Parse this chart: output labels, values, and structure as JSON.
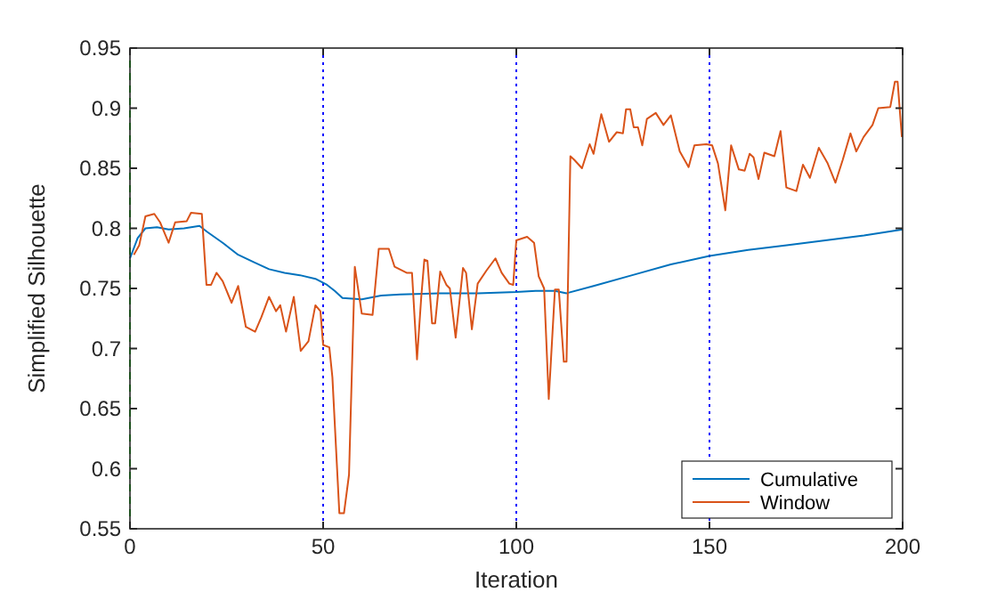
{
  "chart_data": {
    "type": "line",
    "xlabel": "Iteration",
    "ylabel": "Simplified Silhouette",
    "xlim": [
      0,
      200
    ],
    "ylim": [
      0.55,
      0.95
    ],
    "xticks": [
      0,
      50,
      100,
      150,
      200
    ],
    "yticks": [
      0.55,
      0.6,
      0.65,
      0.7,
      0.75,
      0.8,
      0.85,
      0.9,
      0.95
    ],
    "grid": false,
    "legend": "bottom right",
    "line_style": "solid",
    "marker": "none",
    "ref_lines": [
      {
        "axis": "x",
        "value": 0,
        "color": "#00ff00",
        "line_style": "dashed"
      },
      {
        "axis": "x",
        "value": 50,
        "color": "#0000ff",
        "line_style": "dotted"
      },
      {
        "axis": "x",
        "value": 100,
        "color": "#0000ff",
        "line_style": "dotted"
      },
      {
        "axis": "x",
        "value": 150,
        "color": "#0000ff",
        "line_style": "dotted"
      }
    ],
    "series": [
      {
        "name": "Cumulative",
        "color": "#0072bd",
        "x": [
          0,
          2,
          4,
          7,
          10,
          14,
          18,
          20,
          24,
          28,
          32,
          36,
          40,
          44,
          48,
          51,
          53,
          55,
          60,
          65,
          70,
          80,
          90,
          100,
          105,
          110,
          113,
          120,
          130,
          140,
          150,
          160,
          170,
          180,
          190,
          200
        ],
        "values": [
          0.775,
          0.792,
          0.8,
          0.801,
          0.799,
          0.8,
          0.802,
          0.797,
          0.788,
          0.778,
          0.772,
          0.766,
          0.763,
          0.761,
          0.758,
          0.753,
          0.748,
          0.742,
          0.741,
          0.744,
          0.745,
          0.746,
          0.746,
          0.747,
          0.748,
          0.748,
          0.746,
          0.752,
          0.761,
          0.77,
          0.777,
          0.782,
          0.786,
          0.79,
          0.794,
          0.799
        ]
      },
      {
        "name": "Window",
        "color": "#d95319",
        "x": [
          1,
          2.4,
          4,
          6.3,
          7.8,
          10,
          11.7,
          14.7,
          15.8,
          18.6,
          19.8,
          21,
          22.4,
          24,
          26.3,
          28,
          30,
          32.4,
          34,
          36,
          37.8,
          38.9,
          40.4,
          42.4,
          44.2,
          46.2,
          48,
          49.3,
          50,
          51.6,
          52.4,
          54.2,
          55.4,
          56.7,
          58.2,
          60,
          62.8,
          64.4,
          67,
          68.5,
          71.6,
          73,
          74.3,
          75.4,
          76.2,
          77,
          78.2,
          79,
          80.3,
          81.9,
          82.8,
          84.3,
          86.2,
          87,
          88.5,
          90,
          92.3,
          94.6,
          96.2,
          98.2,
          99.2,
          100,
          102.8,
          104.6,
          105.8,
          107.2,
          108.4,
          110,
          111,
          112.3,
          113,
          114,
          115,
          117,
          119,
          120,
          122,
          124,
          126,
          127.6,
          128.4,
          129.5,
          130.4,
          131.5,
          132.6,
          133.8,
          136.1,
          138.1,
          140,
          142.3,
          144.6,
          146.1,
          149.2,
          150.7,
          152.2,
          154.1,
          155.6,
          157.6,
          159.1,
          160.4,
          161.4,
          162.7,
          164.2,
          166.8,
          168.4,
          169.9,
          172.5,
          174.2,
          176,
          178.3,
          180.6,
          182.6,
          184.5,
          186.5,
          188,
          189.9,
          192.2,
          193.7,
          196.8,
          198,
          198.7,
          199.8
        ],
        "values": [
          0.778,
          0.786,
          0.81,
          0.812,
          0.805,
          0.788,
          0.805,
          0.806,
          0.813,
          0.812,
          0.753,
          0.753,
          0.763,
          0.756,
          0.738,
          0.752,
          0.718,
          0.714,
          0.726,
          0.743,
          0.731,
          0.736,
          0.714,
          0.743,
          0.698,
          0.706,
          0.736,
          0.731,
          0.703,
          0.701,
          0.676,
          0.563,
          0.563,
          0.595,
          0.768,
          0.729,
          0.728,
          0.783,
          0.783,
          0.768,
          0.763,
          0.763,
          0.691,
          0.743,
          0.774,
          0.773,
          0.721,
          0.721,
          0.764,
          0.753,
          0.75,
          0.709,
          0.767,
          0.763,
          0.716,
          0.754,
          0.765,
          0.775,
          0.763,
          0.754,
          0.753,
          0.79,
          0.793,
          0.788,
          0.76,
          0.75,
          0.658,
          0.749,
          0.749,
          0.689,
          0.689,
          0.86,
          0.857,
          0.85,
          0.87,
          0.862,
          0.895,
          0.872,
          0.88,
          0.879,
          0.899,
          0.899,
          0.884,
          0.884,
          0.869,
          0.891,
          0.896,
          0.886,
          0.894,
          0.864,
          0.851,
          0.869,
          0.87,
          0.869,
          0.854,
          0.815,
          0.869,
          0.849,
          0.848,
          0.862,
          0.859,
          0.841,
          0.863,
          0.86,
          0.881,
          0.834,
          0.831,
          0.853,
          0.842,
          0.867,
          0.854,
          0.838,
          0.857,
          0.879,
          0.864,
          0.876,
          0.886,
          0.9,
          0.901,
          0.922,
          0.922,
          0.876
        ]
      }
    ]
  }
}
